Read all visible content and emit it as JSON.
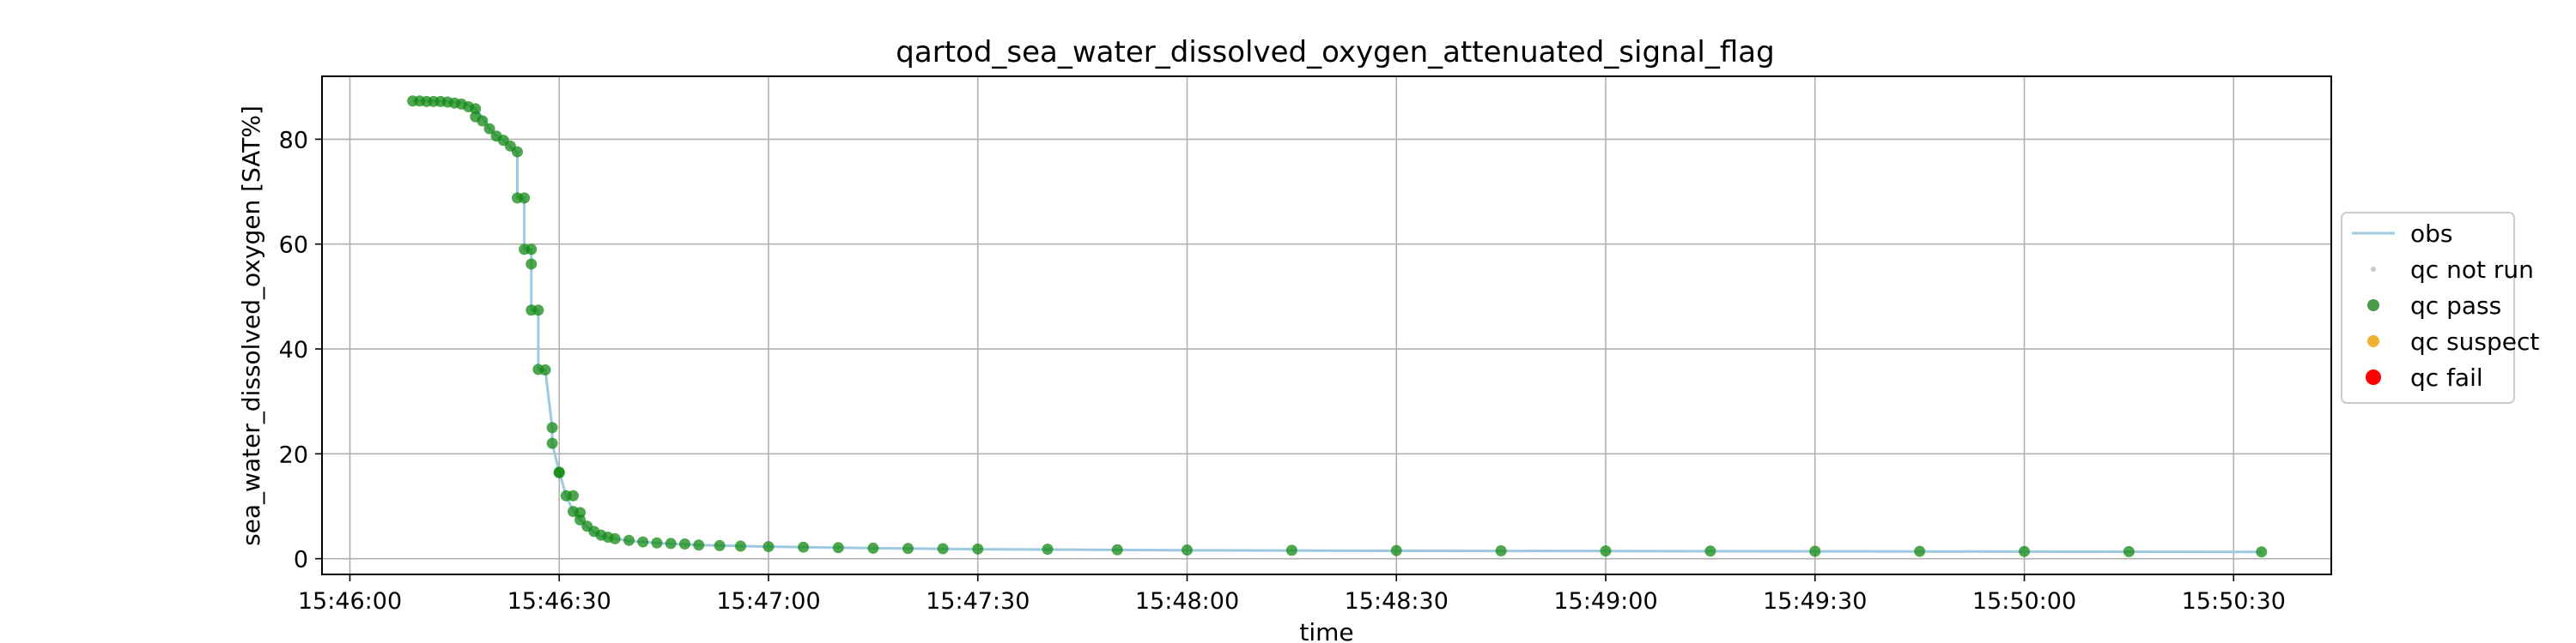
{
  "chart_data": {
    "type": "scatter",
    "title": "qartod_sea_water_dissolved_oxygen_attenuated_signal_flag",
    "xlabel": "time",
    "ylabel": "sea_water_dissolved_oxygen [SAT%]",
    "xlim": [
      "15:45:56",
      "15:50:44"
    ],
    "ylim": [
      -3,
      92
    ],
    "x_ticks": [
      "15:46:00",
      "15:46:30",
      "15:47:00",
      "15:47:30",
      "15:48:00",
      "15:48:30",
      "15:49:00",
      "15:49:30",
      "15:50:00",
      "15:50:30"
    ],
    "y_ticks": [
      0,
      20,
      40,
      60,
      80
    ],
    "grid": true,
    "legend_position": "right",
    "legend": [
      {
        "name": "obs",
        "marker": "line",
        "color": "#9ecae1"
      },
      {
        "name": "qc not run",
        "marker": "dot-small",
        "color": "#c8c8c8"
      },
      {
        "name": "qc pass",
        "marker": "dot",
        "color": "#4a9a4a"
      },
      {
        "name": "qc suspect",
        "marker": "dot",
        "color": "#f0b030"
      },
      {
        "name": "qc fail",
        "marker": "dot-large",
        "color": "#ff0000"
      }
    ],
    "series": [
      {
        "name": "obs",
        "style": "line",
        "color": "#9ecae1",
        "points": [
          [
            "15:46:09",
            87.3
          ],
          [
            "15:46:12",
            87.3
          ],
          [
            "15:46:14",
            87.2
          ],
          [
            "15:46:16",
            87.0
          ],
          [
            "15:46:17",
            86.5
          ],
          [
            "15:46:18",
            85.8
          ],
          [
            "15:46:19",
            84.2
          ],
          [
            "15:46:20",
            82.0
          ],
          [
            "15:46:21",
            80.6
          ],
          [
            "15:46:22",
            79.8
          ],
          [
            "15:46:23",
            78.6
          ],
          [
            "15:46:24",
            77.5
          ],
          [
            "15:46:24",
            68.8
          ],
          [
            "15:46:25",
            68.8
          ],
          [
            "15:46:25",
            59.0
          ],
          [
            "15:46:26",
            59.0
          ],
          [
            "15:46:26",
            56.2
          ],
          [
            "15:46:26",
            47.4
          ],
          [
            "15:46:27",
            47.4
          ],
          [
            "15:46:27",
            36.1
          ],
          [
            "15:46:28",
            36.0
          ],
          [
            "15:46:29",
            25.0
          ],
          [
            "15:46:29",
            22.0
          ],
          [
            "15:46:30",
            16.5
          ],
          [
            "15:46:31",
            12.0
          ],
          [
            "15:46:32",
            9.0
          ],
          [
            "15:46:33",
            7.5
          ],
          [
            "15:46:34",
            6.0
          ],
          [
            "15:46:35",
            5.0
          ],
          [
            "15:46:36",
            4.3
          ],
          [
            "15:46:38",
            3.8
          ],
          [
            "15:46:40",
            3.4
          ],
          [
            "15:46:45",
            2.9
          ],
          [
            "15:46:50",
            2.6
          ],
          [
            "15:47:00",
            2.3
          ],
          [
            "15:47:15",
            2.0
          ],
          [
            "15:47:30",
            1.8
          ],
          [
            "15:48:00",
            1.6
          ],
          [
            "15:48:30",
            1.5
          ],
          [
            "15:49:00",
            1.45
          ],
          [
            "15:49:30",
            1.4
          ],
          [
            "15:50:00",
            1.35
          ],
          [
            "15:50:34",
            1.3
          ]
        ]
      },
      {
        "name": "qc pass",
        "style": "points",
        "color": "#138a13",
        "points": [
          [
            "15:46:09",
            87.3
          ],
          [
            "15:46:10",
            87.3
          ],
          [
            "15:46:11",
            87.2
          ],
          [
            "15:46:12",
            87.2
          ],
          [
            "15:46:13",
            87.2
          ],
          [
            "15:46:14",
            87.1
          ],
          [
            "15:46:15",
            86.9
          ],
          [
            "15:46:16",
            86.7
          ],
          [
            "15:46:17",
            86.2
          ],
          [
            "15:46:18",
            85.8
          ],
          [
            "15:46:18",
            84.3
          ],
          [
            "15:46:19",
            83.5
          ],
          [
            "15:46:20",
            82.0
          ],
          [
            "15:46:21",
            80.6
          ],
          [
            "15:46:22",
            79.8
          ],
          [
            "15:46:23",
            78.7
          ],
          [
            "15:46:24",
            77.6
          ],
          [
            "15:46:24",
            68.8
          ],
          [
            "15:46:25",
            68.8
          ],
          [
            "15:46:25",
            59.0
          ],
          [
            "15:46:26",
            59.0
          ],
          [
            "15:46:26",
            56.2
          ],
          [
            "15:46:26",
            47.4
          ],
          [
            "15:46:27",
            47.4
          ],
          [
            "15:46:27",
            36.1
          ],
          [
            "15:46:28",
            36.0
          ],
          [
            "15:46:29",
            25.0
          ],
          [
            "15:46:29",
            22.0
          ],
          [
            "15:46:30",
            16.5
          ],
          [
            "15:46:30",
            16.4
          ],
          [
            "15:46:31",
            12.0
          ],
          [
            "15:46:32",
            12.0
          ],
          [
            "15:46:32",
            9.0
          ],
          [
            "15:46:33",
            8.8
          ],
          [
            "15:46:33",
            7.4
          ],
          [
            "15:46:34",
            6.2
          ],
          [
            "15:46:35",
            5.2
          ],
          [
            "15:46:36",
            4.5
          ],
          [
            "15:46:37",
            4.1
          ],
          [
            "15:46:38",
            3.8
          ],
          [
            "15:46:40",
            3.5
          ],
          [
            "15:46:42",
            3.2
          ],
          [
            "15:46:44",
            3.0
          ],
          [
            "15:46:46",
            2.9
          ],
          [
            "15:46:48",
            2.8
          ],
          [
            "15:46:50",
            2.6
          ],
          [
            "15:46:53",
            2.5
          ],
          [
            "15:46:56",
            2.4
          ],
          [
            "15:47:00",
            2.3
          ],
          [
            "15:47:05",
            2.2
          ],
          [
            "15:47:10",
            2.1
          ],
          [
            "15:47:15",
            2.0
          ],
          [
            "15:47:20",
            1.95
          ],
          [
            "15:47:25",
            1.9
          ],
          [
            "15:47:30",
            1.85
          ],
          [
            "15:47:40",
            1.8
          ],
          [
            "15:47:50",
            1.7
          ],
          [
            "15:48:00",
            1.65
          ],
          [
            "15:48:15",
            1.6
          ],
          [
            "15:48:30",
            1.55
          ],
          [
            "15:48:45",
            1.5
          ],
          [
            "15:49:00",
            1.48
          ],
          [
            "15:49:15",
            1.45
          ],
          [
            "15:49:30",
            1.42
          ],
          [
            "15:49:45",
            1.4
          ],
          [
            "15:50:00",
            1.38
          ],
          [
            "15:50:15",
            1.35
          ],
          [
            "15:50:34",
            1.3
          ]
        ]
      }
    ]
  }
}
